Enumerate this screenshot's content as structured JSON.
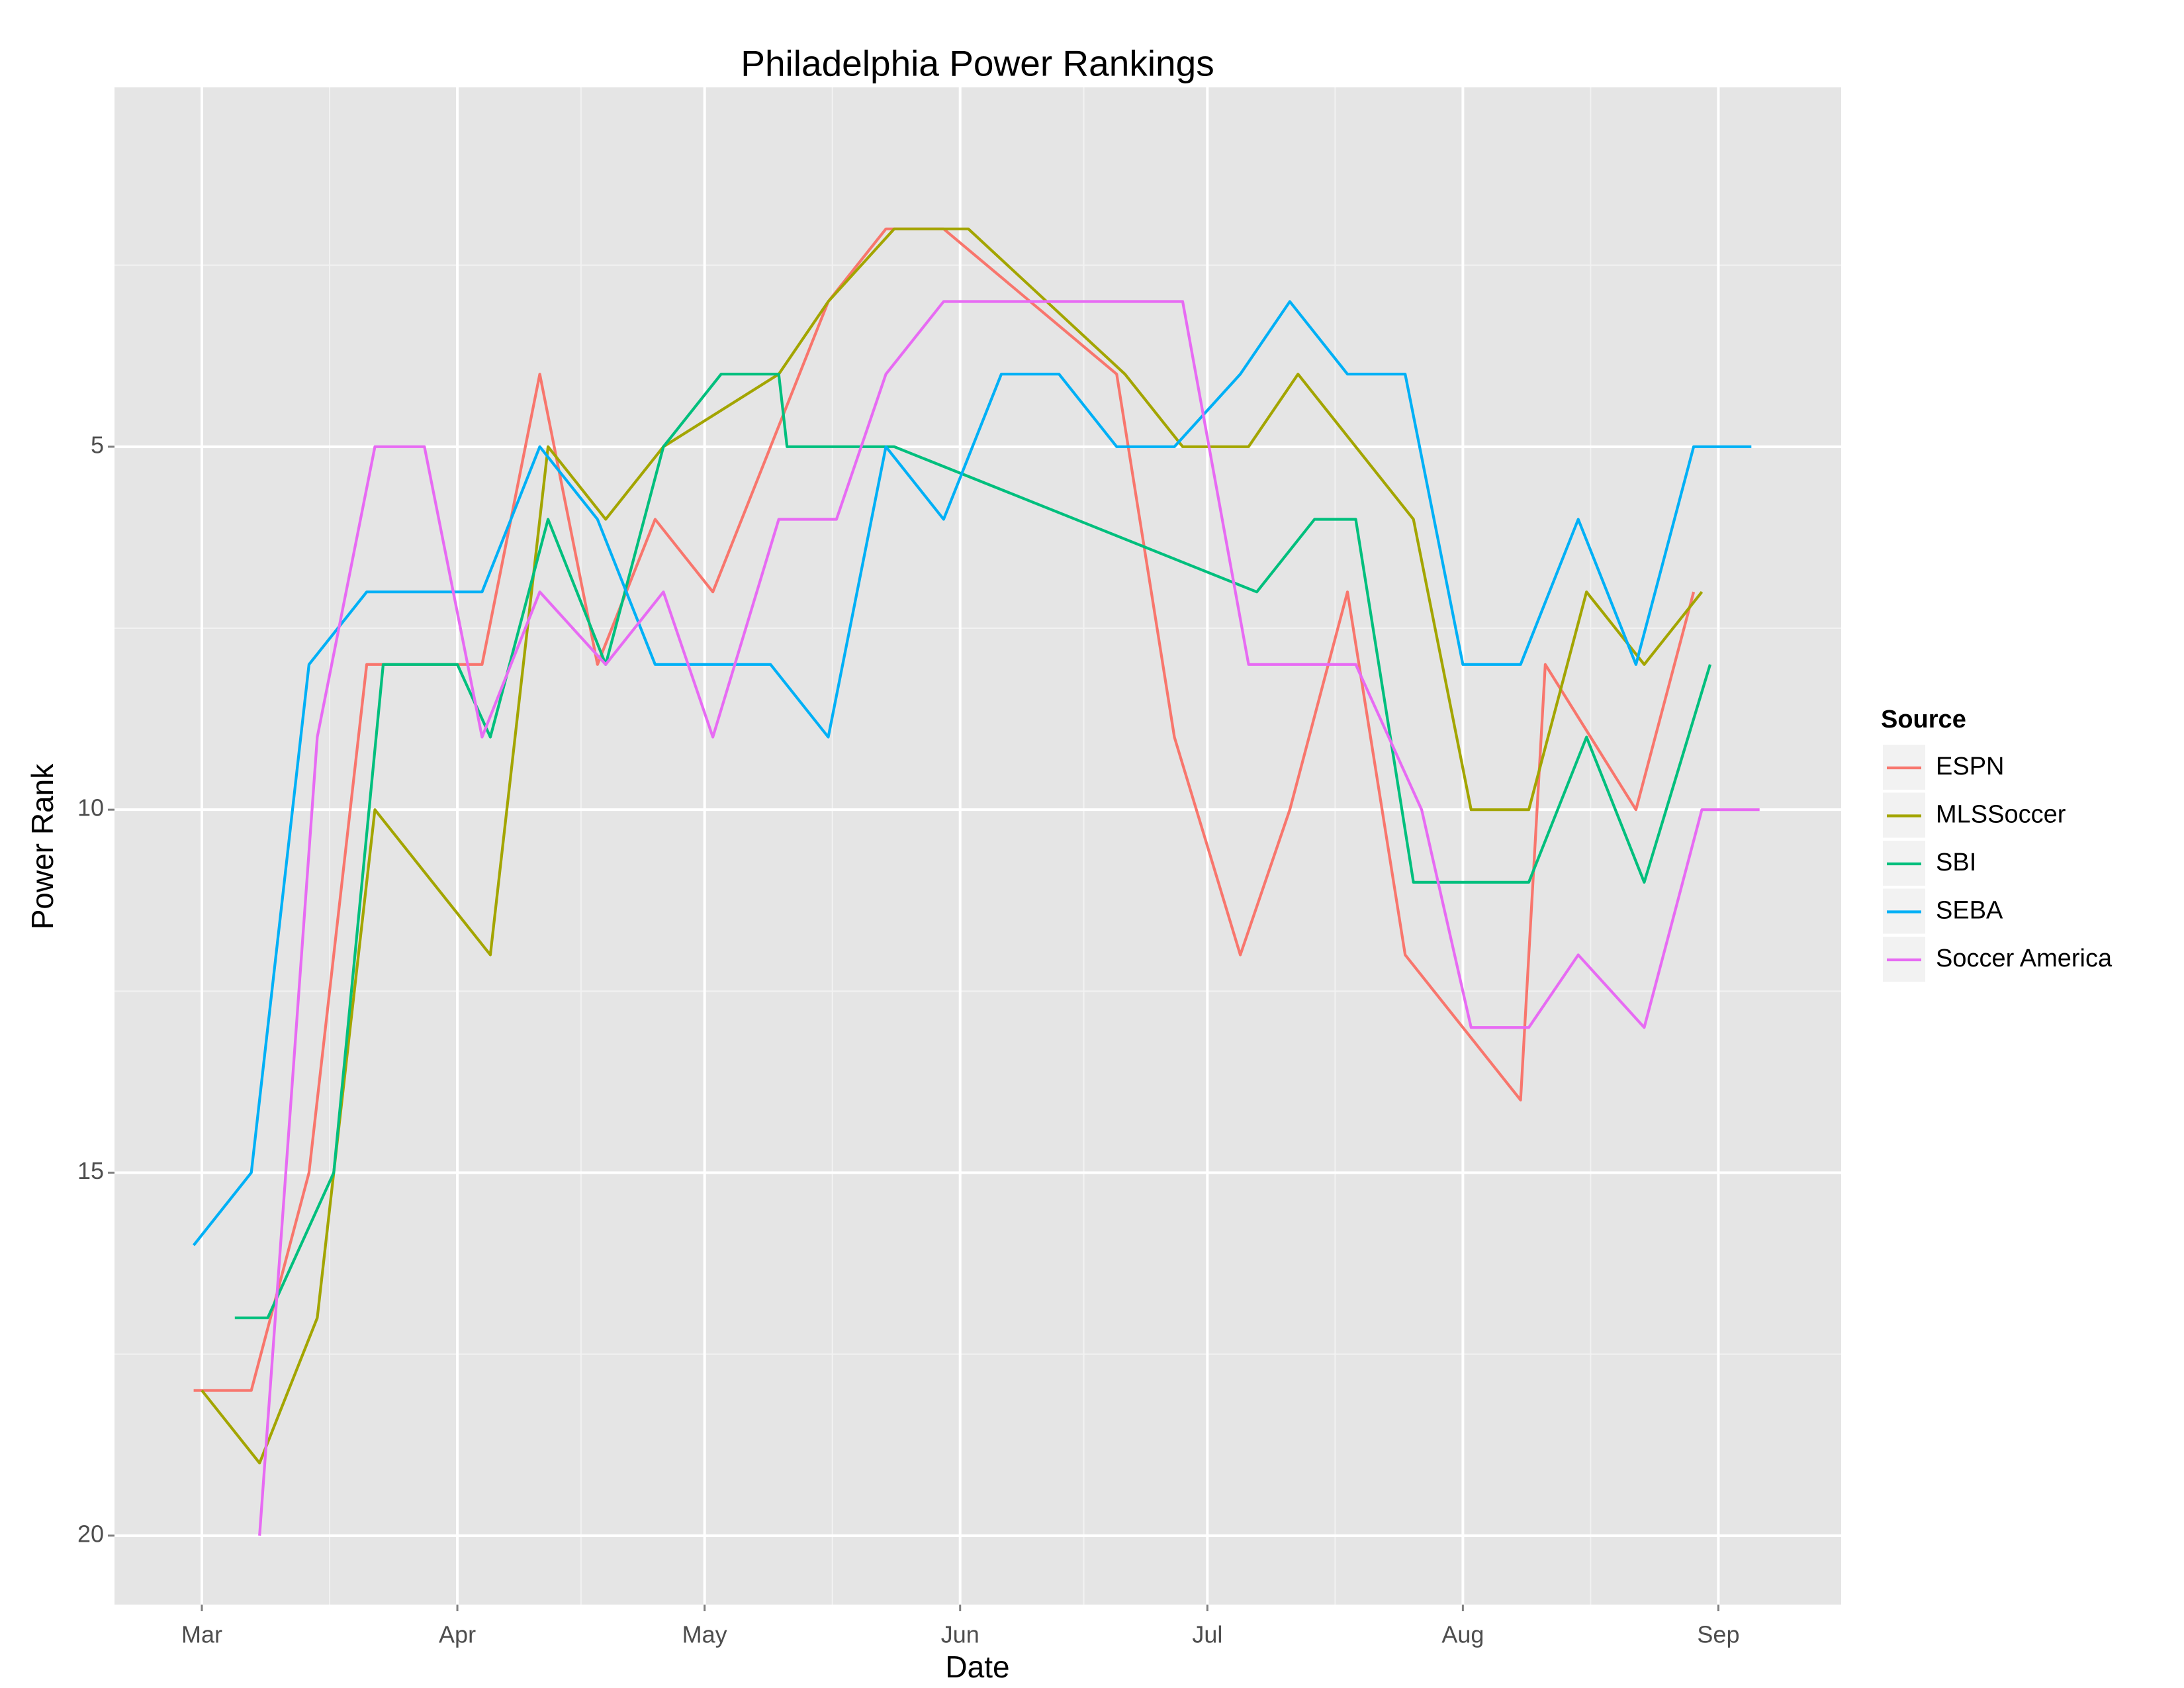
{
  "chart_data": {
    "type": "line",
    "title": "Philadelphia Power Rankings",
    "x_label": "Date",
    "y_label": "Power Rank",
    "legend_title": "Source",
    "legend": "right",
    "grid": true,
    "xlim": [
      49.4,
      258.9
    ],
    "ylim": [
      20.95,
      0.05
    ],
    "xticks": [
      {
        "value": 60,
        "label": "Mar"
      },
      {
        "value": 91,
        "label": "Apr"
      },
      {
        "value": 121,
        "label": "May"
      },
      {
        "value": 152,
        "label": "Jun"
      },
      {
        "value": 182,
        "label": "Jul"
      },
      {
        "value": 213,
        "label": "Aug"
      },
      {
        "value": 244,
        "label": "Sep"
      }
    ],
    "yticks": [
      5,
      10,
      15,
      20
    ],
    "xminor": [
      75.5,
      106,
      136.5,
      167,
      197.5,
      228.5
    ],
    "yminor": [
      2.5,
      7.5,
      12.5,
      17.5
    ],
    "series": [
      {
        "name": "ESPN",
        "color": "#F8766D",
        "x": [
          59,
          66,
          73,
          80,
          94,
          101,
          108,
          115,
          122,
          136,
          143,
          150,
          171,
          178,
          186,
          192,
          199,
          206,
          220,
          223,
          234,
          241
        ],
        "values": [
          18,
          18,
          15,
          8,
          8,
          4,
          8,
          6,
          7,
          3,
          2,
          2,
          4,
          9,
          12,
          10,
          7,
          12,
          14,
          8,
          10,
          7
        ]
      },
      {
        "name": "MLSSoccer",
        "color": "#A3A500",
        "x": [
          60,
          67,
          74,
          81,
          95,
          102,
          109,
          116,
          130,
          136,
          144,
          153,
          172,
          179,
          187,
          193,
          207,
          214,
          221,
          228,
          235,
          242
        ],
        "values": [
          18,
          19,
          17,
          10,
          12,
          5,
          6,
          5,
          4,
          3,
          2,
          2,
          4,
          5,
          5,
          4,
          6,
          10,
          10,
          7,
          8,
          7
        ]
      },
      {
        "name": "SBI",
        "color": "#00BF7D",
        "x": [
          64,
          68,
          76,
          82,
          91,
          95,
          102,
          109,
          116,
          123,
          130,
          131,
          144,
          188,
          195,
          200,
          207,
          221,
          228,
          235,
          243
        ],
        "values": [
          17,
          17,
          15,
          8,
          8,
          9,
          6,
          8,
          5,
          4,
          4,
          5,
          5,
          7,
          6,
          6,
          11,
          11,
          9,
          11,
          8
        ]
      },
      {
        "name": "SEBA",
        "color": "#00B0F6",
        "x": [
          59,
          66,
          73,
          80,
          94,
          101,
          108,
          115,
          129,
          136,
          143,
          150,
          157,
          164,
          171,
          178,
          186,
          192,
          199,
          206,
          213,
          220,
          227,
          234,
          241,
          248
        ],
        "values": [
          16,
          15,
          8,
          7,
          7,
          5,
          6,
          8,
          8,
          9,
          5,
          6,
          4,
          4,
          5,
          5,
          4,
          3,
          4,
          4,
          8,
          8,
          6,
          8,
          5,
          5
        ]
      },
      {
        "name": "Soccer America",
        "color": "#E76BF3",
        "x": [
          67,
          74,
          81,
          87,
          94,
          101,
          109,
          116,
          122,
          130,
          137,
          143,
          150,
          179,
          187,
          200,
          208,
          214,
          221,
          227,
          235,
          242,
          249
        ],
        "values": [
          20,
          9,
          5,
          5,
          9,
          7,
          8,
          7,
          9,
          6,
          6,
          4,
          3,
          3,
          8,
          8,
          10,
          13,
          13,
          12,
          13,
          10,
          10
        ]
      }
    ]
  }
}
